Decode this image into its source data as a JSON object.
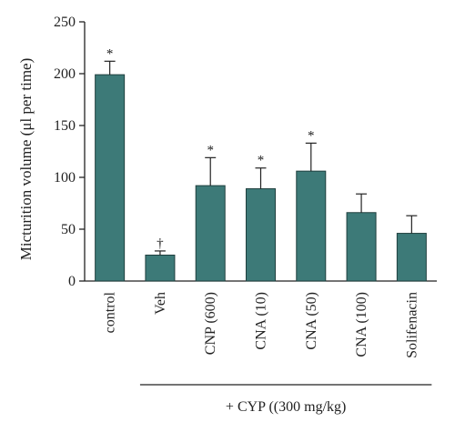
{
  "chart_data": {
    "type": "bar",
    "ylabel": "Micturition volume (μl per time)",
    "ylim": [
      0,
      250
    ],
    "yticks": [
      0,
      50,
      100,
      150,
      200,
      250
    ],
    "categories": [
      "control",
      "Veh",
      "CNP (600)",
      "CNA (10)",
      "CNA (50)",
      "CNA (100)",
      "Solifenacin"
    ],
    "values": [
      199,
      25,
      92,
      89,
      106,
      66,
      46
    ],
    "errors": [
      13,
      4,
      27,
      20,
      27,
      18,
      17
    ],
    "markers": [
      "*",
      "†",
      "*",
      "*",
      "*",
      "",
      ""
    ],
    "group_label": "+ CYP ((300 mg/kg)",
    "bar_color": "#3d7a78",
    "grid": false
  }
}
